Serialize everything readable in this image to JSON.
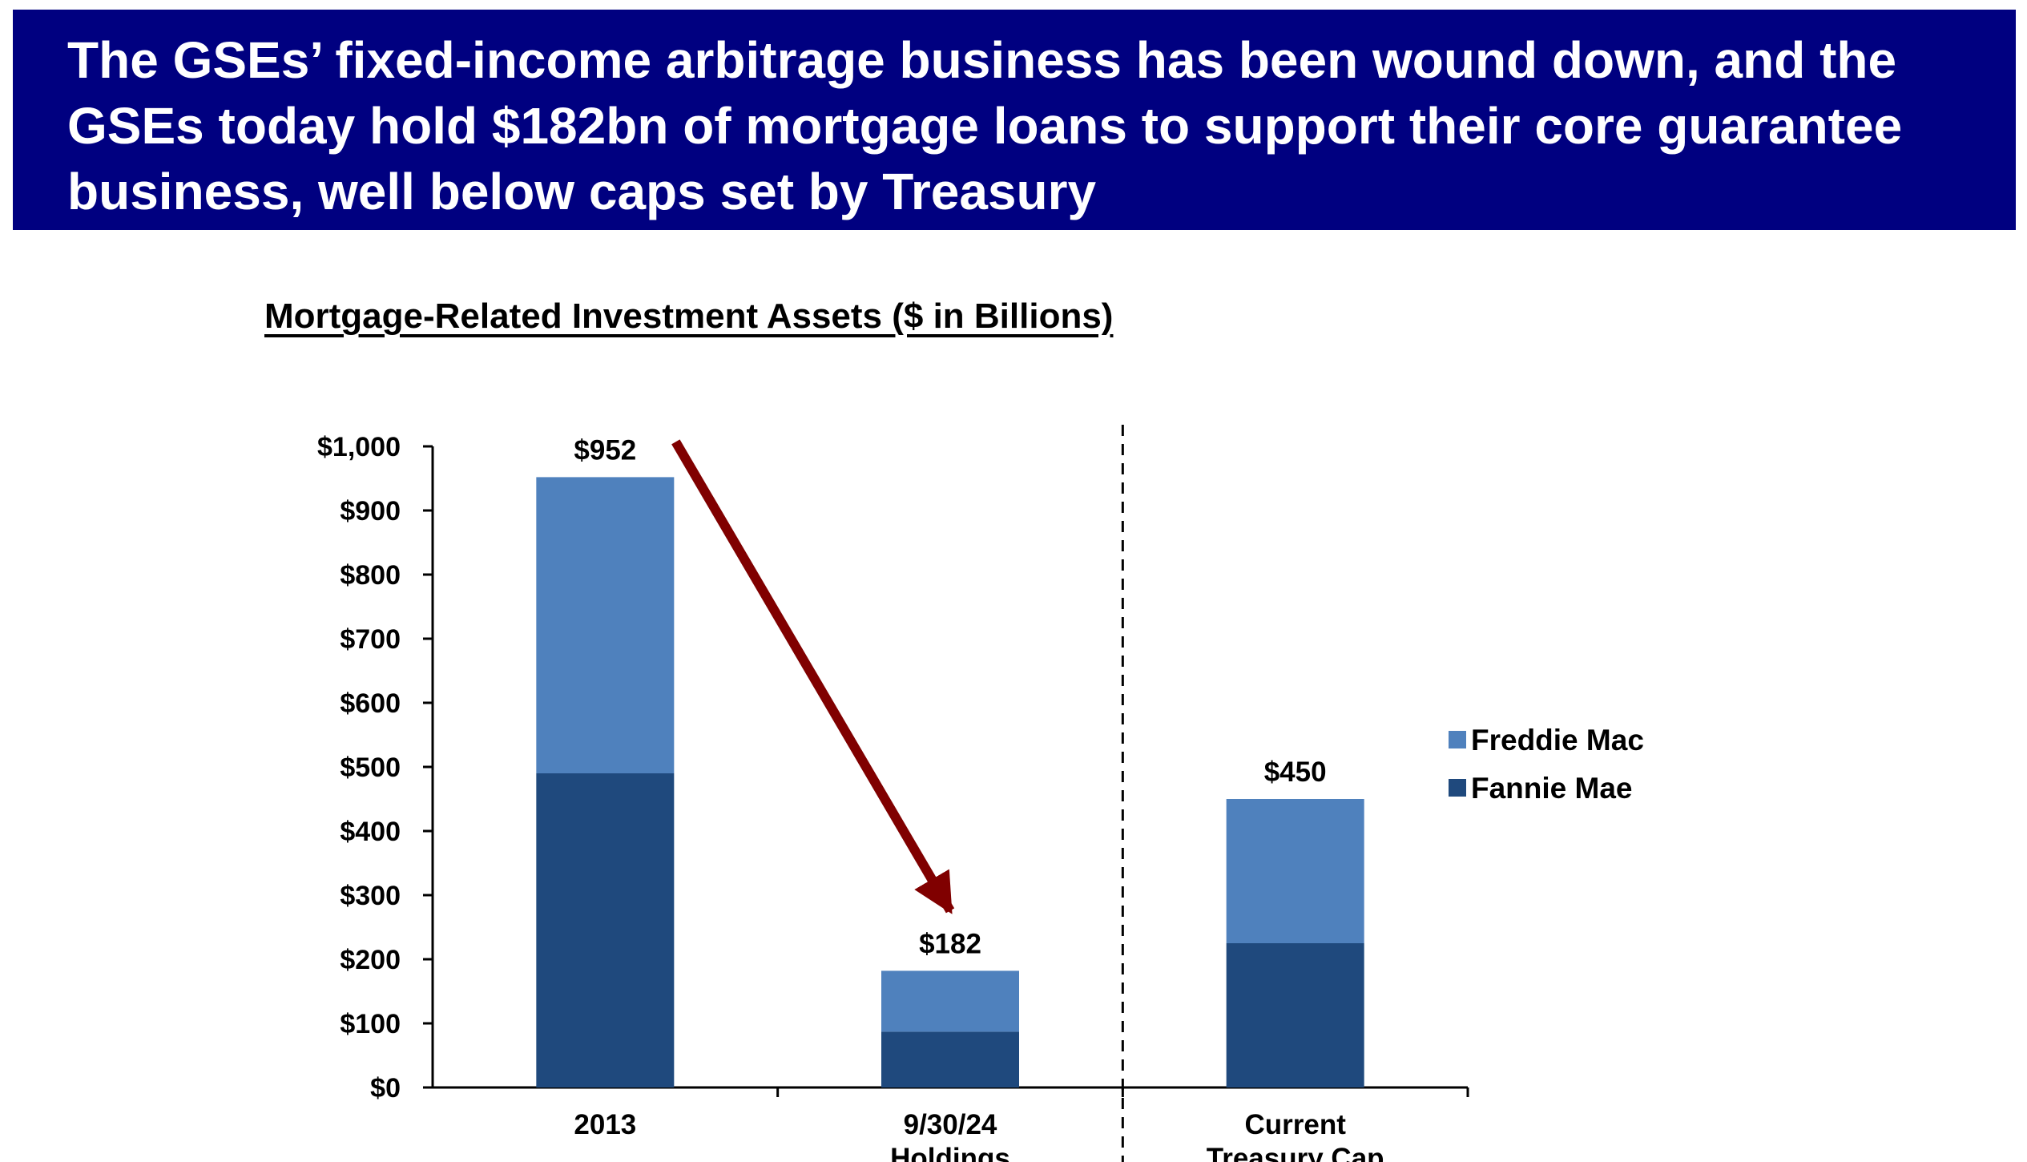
{
  "header": {
    "title": "The GSEs’ fixed-income arbitrage business has been wound down, and the GSEs today hold $182bn of mortgage loans to support their core guarantee business, well below caps set by Treasury"
  },
  "chart_data": {
    "type": "bar",
    "stacked": true,
    "title": "Mortgage-Related Investment Assets ($ in Billions)",
    "xlabel": "",
    "ylabel": "",
    "categories": [
      [
        "2013"
      ],
      [
        "9/30/24",
        "Holdings"
      ],
      [
        "Current",
        "Treasury Cap"
      ]
    ],
    "series": [
      {
        "name": "Fannie Mae",
        "color": "#1F497D",
        "values": [
          490,
          87,
          225
        ]
      },
      {
        "name": "Freddie Mac",
        "color": "#4F81BD",
        "values": [
          462,
          95,
          225
        ]
      }
    ],
    "totals": [
      "$952",
      "$182",
      "$450"
    ],
    "ylim": [
      0,
      1000
    ],
    "yticks": [
      0,
      100,
      200,
      300,
      400,
      500,
      600,
      700,
      800,
      900,
      1000
    ],
    "ytick_labels": [
      "$0",
      "$100",
      "$200",
      "$300",
      "$400",
      "$500",
      "$600",
      "$700",
      "$800",
      "$900",
      "$1,000"
    ],
    "grid": false,
    "legend": {
      "placement": "right",
      "order": [
        "Freddie Mac",
        "Fannie Mae"
      ]
    },
    "annotations": {
      "arrow": {
        "from": "2013",
        "to": "9/30/24 Holdings",
        "color": "#800000"
      },
      "divider": {
        "style": "dashed",
        "between": [
          "9/30/24 Holdings",
          "Current Treasury Cap"
        ]
      }
    }
  }
}
